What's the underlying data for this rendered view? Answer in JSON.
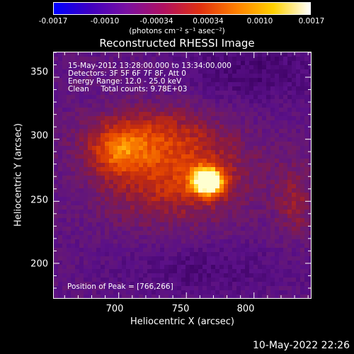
{
  "colorbar": {
    "ticks": [
      "-0.0017",
      "-0.0010",
      "-0.00034",
      "0.00034",
      "0.0010",
      "0.0017"
    ],
    "units": "(photons cm⁻² s⁻¹ asec⁻²)",
    "colormap": [
      "#0000ff",
      "#4000c0",
      "#7a10a0",
      "#b01060",
      "#e03010",
      "#ff8000",
      "#ffd000",
      "#ffffff"
    ]
  },
  "chart_data": {
    "type": "heatmap",
    "title": "Reconstructed RHESSI Image",
    "xlabel": "Heliocentric X (arcsec)",
    "ylabel": "Heliocentric Y (arcsec)",
    "xlim": [
      652,
      842
    ],
    "ylim": [
      172,
      370
    ],
    "x_ticks": [
      "700",
      "750",
      "800"
    ],
    "y_ticks": [
      "200",
      "250",
      "300",
      "350"
    ],
    "clim": [
      -0.0017,
      0.0017
    ],
    "peak": [
      766,
      266
    ],
    "annotations": {
      "time": "15-May-2012 13:28:00.000 to 13:34:00.000",
      "detectors": "Detectors: 3F 5F 6F 7F 8F, Att 0",
      "energy": "Energy Range: 12.0 - 25.0 keV",
      "clean": "Clean     Total counts: 9.78E+03",
      "peak_label": "Position of Peak = [766,266]"
    }
  },
  "footer": {
    "timestamp": "10-May-2022 22:26"
  }
}
